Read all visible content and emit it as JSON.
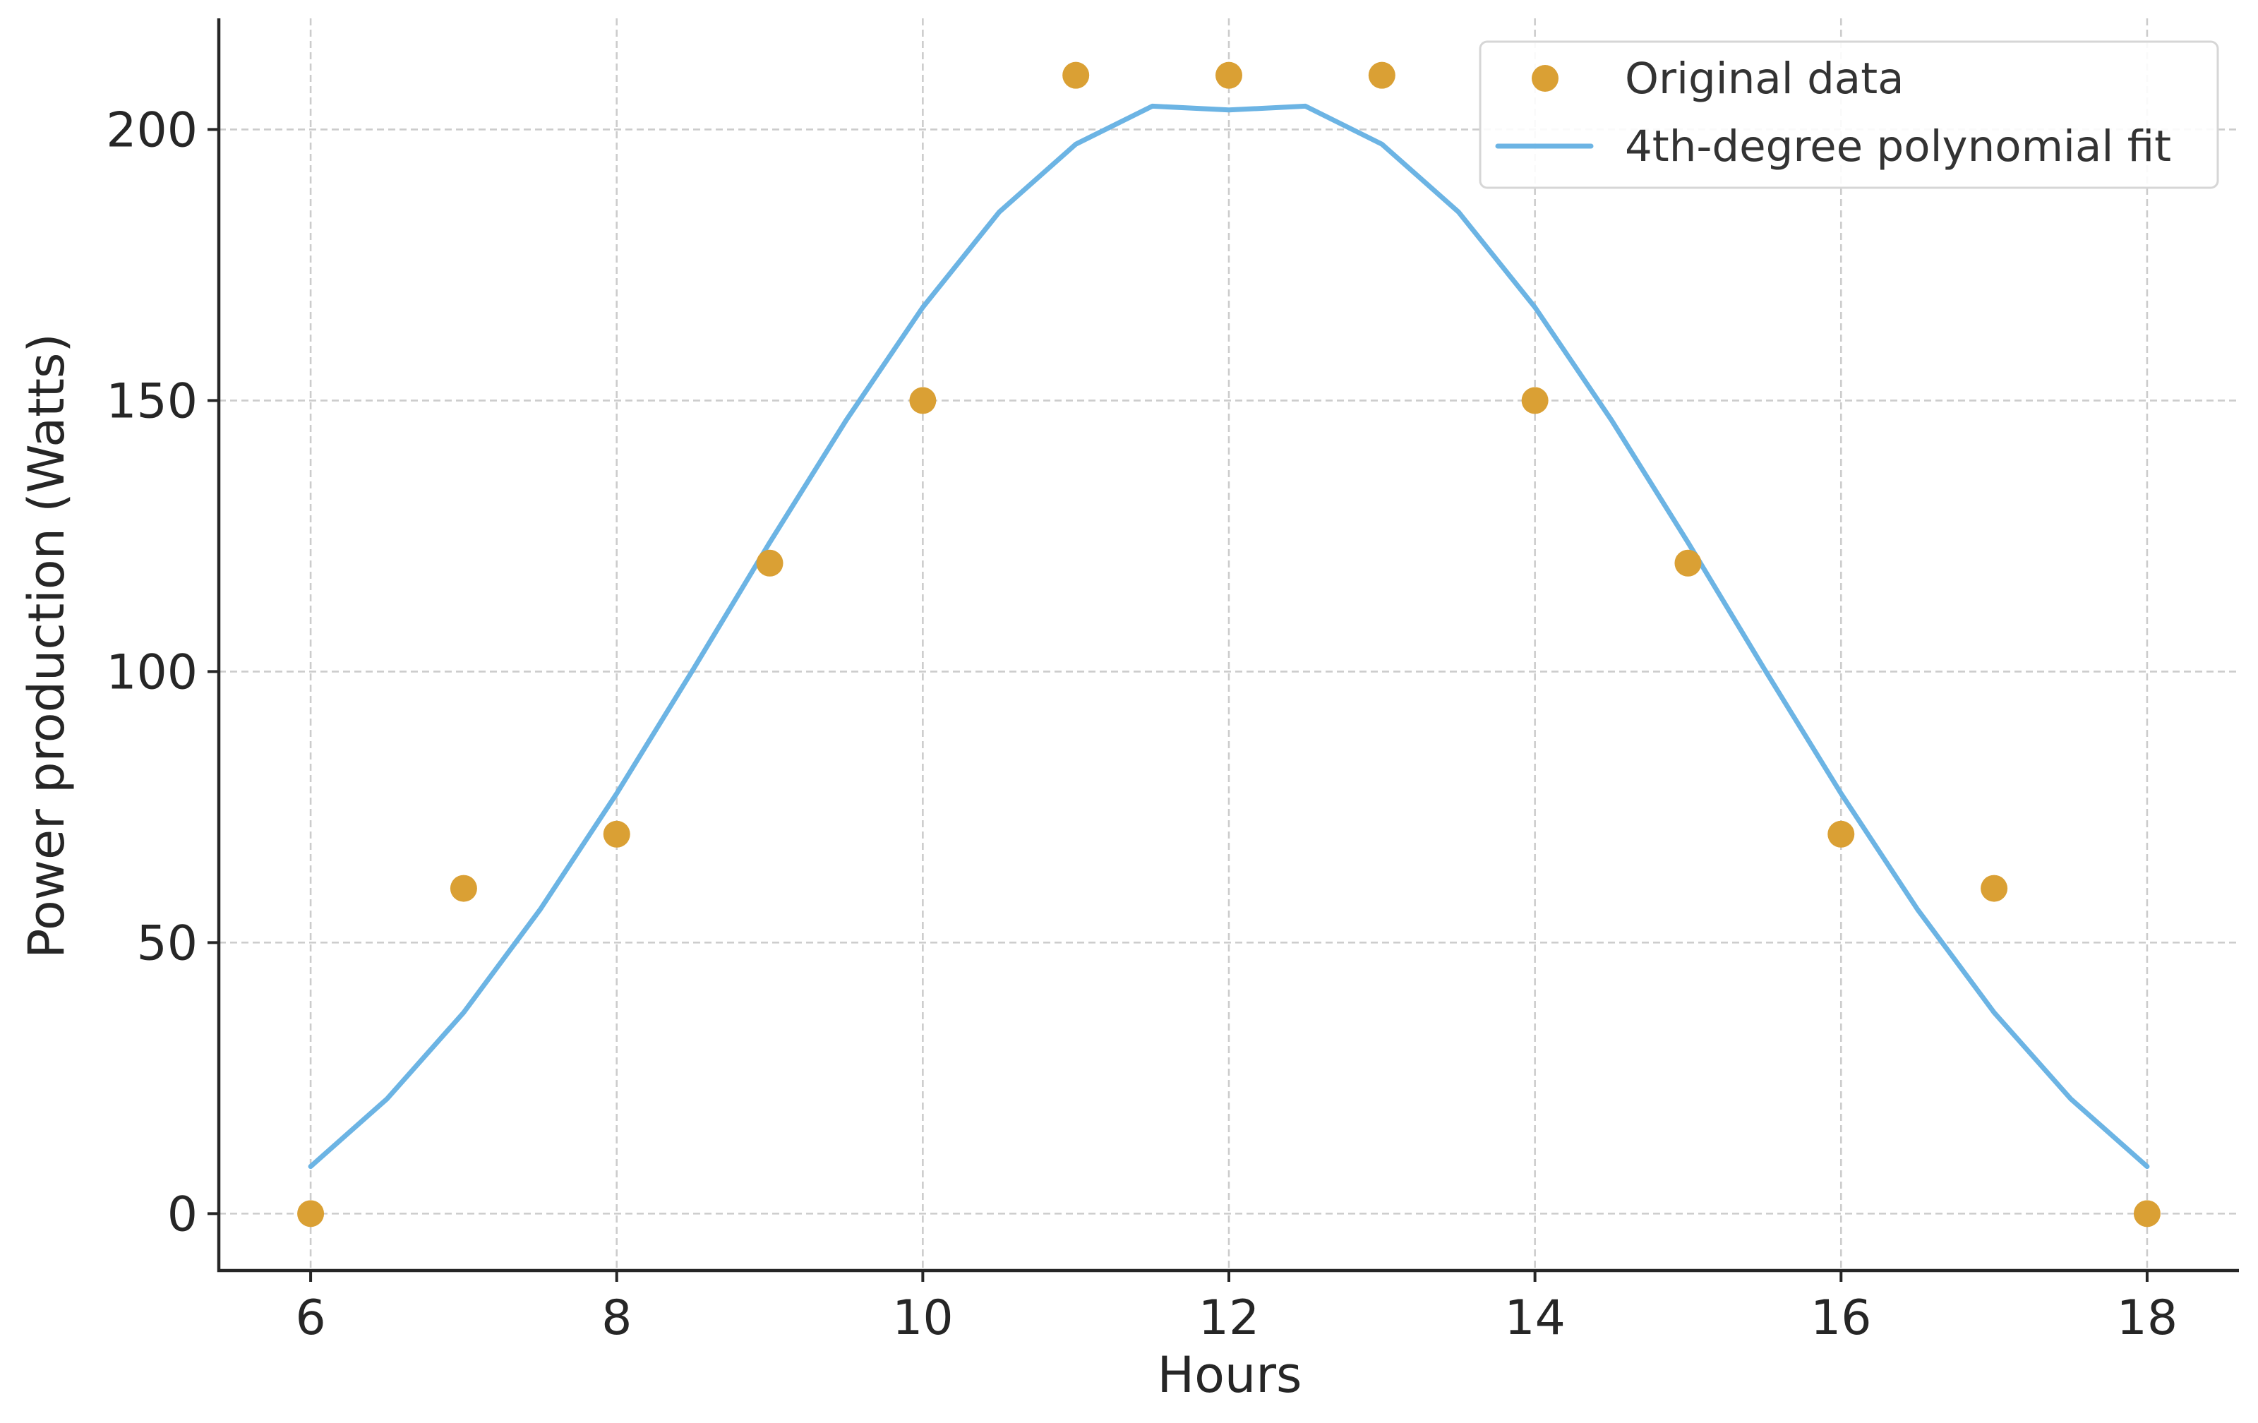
{
  "chart_data": {
    "type": "scatter",
    "title": "",
    "xlabel": "Hours",
    "ylabel": "Power production (Watts)",
    "xlim": [
      5.4,
      18.6
    ],
    "ylim": [
      -10.5,
      220.5
    ],
    "x_ticks": [
      6,
      8,
      10,
      12,
      14,
      16,
      18
    ],
    "y_ticks": [
      0,
      50,
      100,
      150,
      200
    ],
    "grid": true,
    "legend_position": "top-right",
    "series": [
      {
        "name": "Original data",
        "kind": "scatter",
        "color": "#DAA034",
        "x": [
          6,
          7,
          8,
          9,
          10,
          11,
          12,
          13,
          14,
          15,
          16,
          17,
          18
        ],
        "y": [
          0,
          60,
          70,
          120,
          150,
          210,
          210,
          210,
          150,
          120,
          70,
          60,
          0
        ]
      },
      {
        "name": "4th-degree polynomial fit",
        "kind": "line",
        "color": "#6CB4E4",
        "x": [
          6,
          6.5,
          7,
          7.5,
          8,
          8.5,
          9,
          9.5,
          10,
          10.5,
          11,
          11.5,
          12,
          12.5,
          13,
          13.5,
          14,
          14.5,
          15,
          15.5,
          16,
          16.5,
          17,
          17.5,
          18
        ],
        "y": [
          8.7,
          21.2,
          37.1,
          56.1,
          77.5,
          100.4,
          123.8,
          146.4,
          167.2,
          184.8,
          197.3,
          204.3,
          203.6,
          204.3,
          197.3,
          184.8,
          167.2,
          146.4,
          123.8,
          100.4,
          77.5,
          56.1,
          37.1,
          21.2,
          8.7
        ]
      }
    ]
  }
}
